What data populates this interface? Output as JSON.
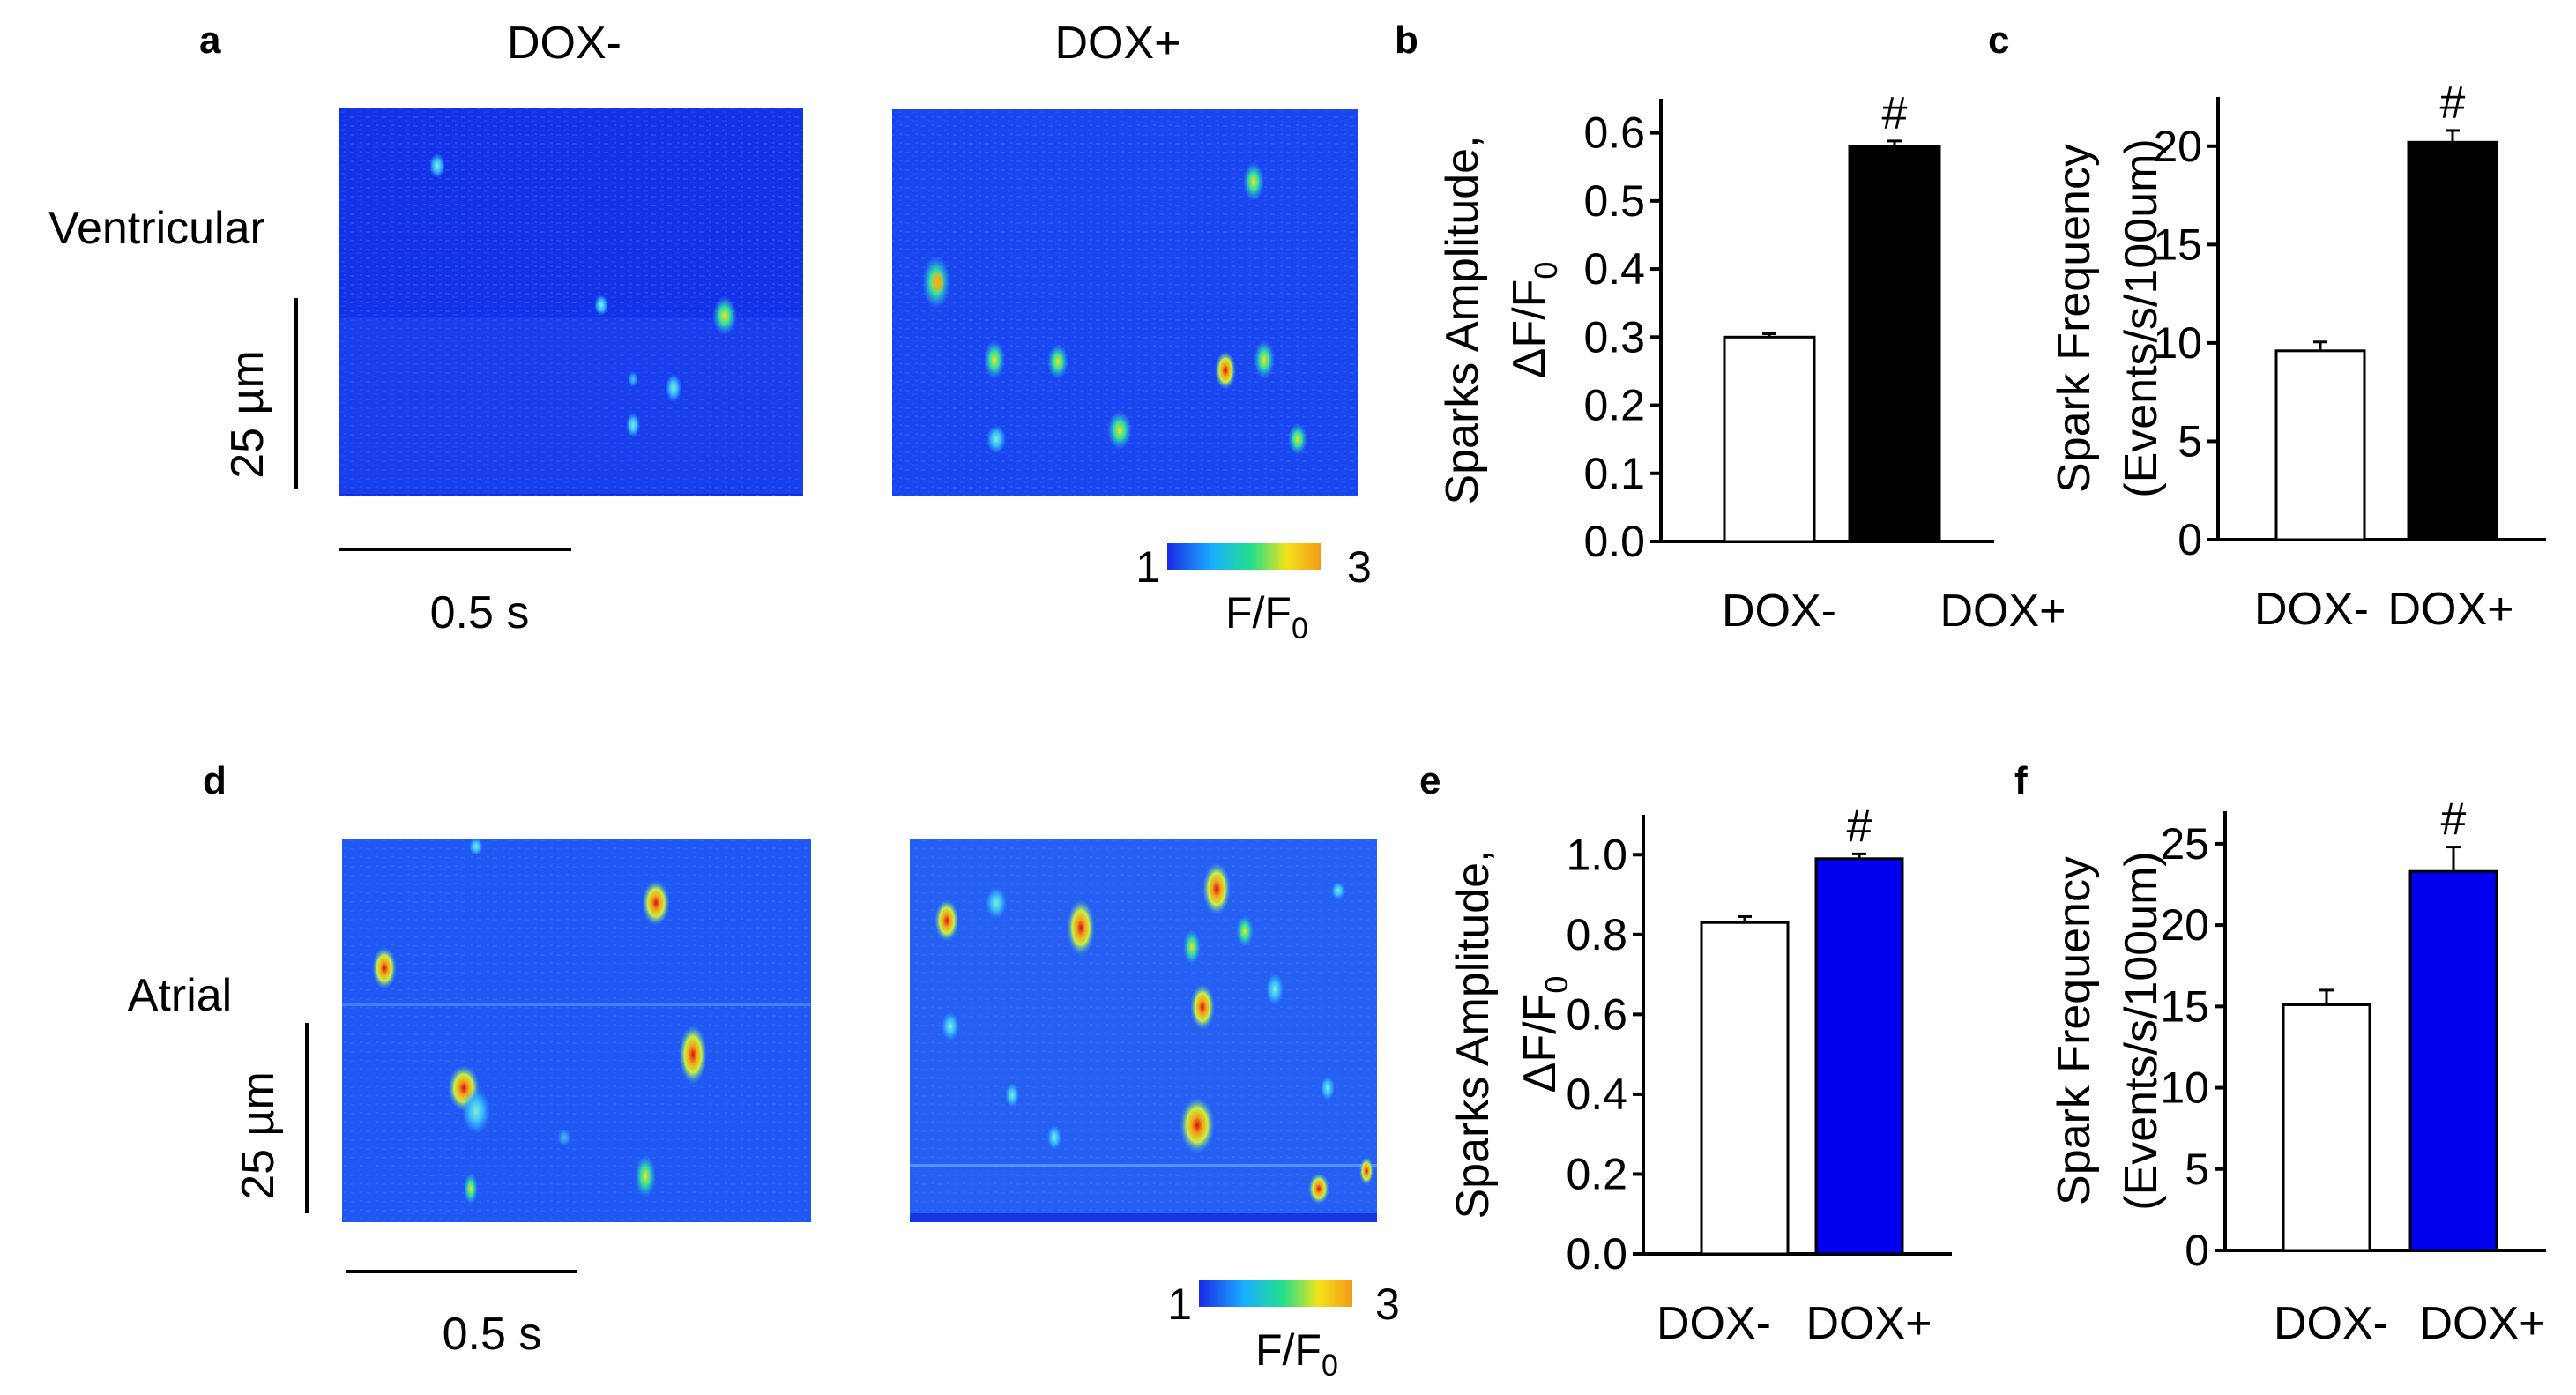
{
  "panel_labels": [
    "a",
    "b",
    "c",
    "d",
    "e",
    "f"
  ],
  "images": {
    "col_dox_minus": "DOX-",
    "col_dox_plus": "DOX+",
    "row_ventricular": "Ventricular",
    "row_atrial": "Atrial",
    "scale_space": "25 µm",
    "scale_time": "0.5 s",
    "colorbar_min": "1",
    "colorbar_max": "3",
    "colorbar_label": "F/F",
    "colorbar_sub": "0",
    "colorbar_colors": [
      "#1a2ae6",
      "#1ab0ff",
      "#22e08a",
      "#f2e21a",
      "#f59a18"
    ]
  },
  "chart_data": [
    {
      "panel": "b",
      "type": "bar",
      "categories": [
        "DOX-",
        "DOX+"
      ],
      "values": [
        0.3,
        0.58
      ],
      "errors": [
        0.005,
        0.008
      ],
      "colors": [
        "#ffffff",
        "#000000"
      ],
      "ylabel_line1": "Sparks Amplitude,",
      "ylabel_line2": "ΔF/F",
      "ylabel_sub": "0",
      "ylim": [
        0,
        0.65
      ],
      "yticks": [
        "0.0",
        "0.1",
        "0.2",
        "0.3",
        "0.4",
        "0.5",
        "0.6"
      ],
      "ytick_values": [
        0,
        0.1,
        0.2,
        0.3,
        0.4,
        0.5,
        0.6
      ],
      "annotation": "#"
    },
    {
      "panel": "c",
      "type": "bar",
      "categories": [
        "DOX-",
        "DOX+"
      ],
      "values": [
        9.6,
        20.2
      ],
      "errors": [
        0.45,
        0.6
      ],
      "colors": [
        "#ffffff",
        "#000000"
      ],
      "ylabel_line1": "Spark Frequency",
      "ylabel_line2": "(Events/s/100um)",
      "ylabel_sub": "",
      "ylim": [
        0,
        22.5
      ],
      "yticks": [
        "0",
        "5",
        "10",
        "15",
        "20"
      ],
      "ytick_values": [
        0,
        5,
        10,
        15,
        20
      ],
      "annotation": "#"
    },
    {
      "panel": "e",
      "type": "bar",
      "categories": [
        "DOX-",
        "DOX+"
      ],
      "values": [
        0.83,
        0.99
      ],
      "errors": [
        0.015,
        0.012
      ],
      "colors": [
        "#ffffff",
        "#0000ee"
      ],
      "ylabel_line1": "Sparks Amplitude,",
      "ylabel_line2": "ΔF/F",
      "ylabel_sub": "0",
      "ylim": [
        0,
        1.1
      ],
      "yticks": [
        "0.0",
        "0.2",
        "0.4",
        "0.6",
        "0.8",
        "1.0"
      ],
      "ytick_values": [
        0,
        0.2,
        0.4,
        0.6,
        0.8,
        1.0
      ],
      "annotation": "#"
    },
    {
      "panel": "f",
      "type": "bar",
      "categories": [
        "DOX-",
        "DOX+"
      ],
      "values": [
        15.1,
        23.3
      ],
      "errors": [
        0.9,
        1.5
      ],
      "colors": [
        "#ffffff",
        "#0000ee"
      ],
      "ylabel_line1": "Spark Frequency",
      "ylabel_line2": "(Events/s/100um)",
      "ylabel_sub": "",
      "ylim": [
        0,
        27
      ],
      "yticks": [
        "0",
        "5",
        "10",
        "15",
        "20",
        "25"
      ],
      "ytick_values": [
        0,
        5,
        10,
        15,
        20,
        25
      ],
      "annotation": "#"
    }
  ]
}
